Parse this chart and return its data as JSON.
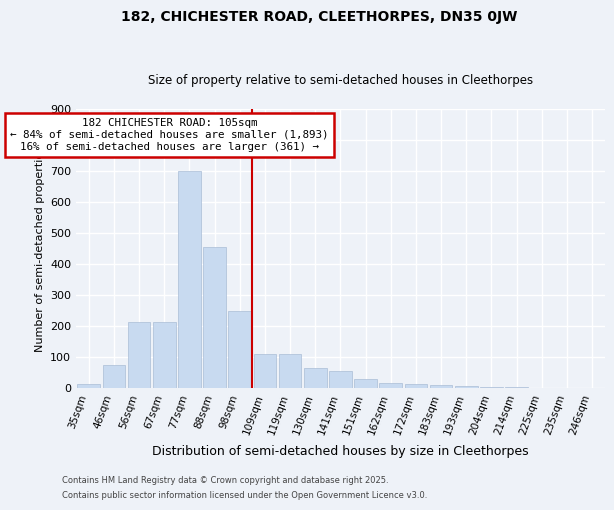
{
  "title": "182, CHICHESTER ROAD, CLEETHORPES, DN35 0JW",
  "subtitle": "Size of property relative to semi-detached houses in Cleethorpes",
  "xlabel": "Distribution of semi-detached houses by size in Cleethorpes",
  "ylabel": "Number of semi-detached properties",
  "categories": [
    "35sqm",
    "46sqm",
    "56sqm",
    "67sqm",
    "77sqm",
    "88sqm",
    "98sqm",
    "109sqm",
    "119sqm",
    "130sqm",
    "141sqm",
    "151sqm",
    "162sqm",
    "172sqm",
    "183sqm",
    "193sqm",
    "204sqm",
    "214sqm",
    "225sqm",
    "235sqm",
    "246sqm"
  ],
  "values": [
    13,
    75,
    215,
    215,
    700,
    455,
    250,
    110,
    110,
    65,
    55,
    30,
    18,
    15,
    12,
    8,
    5,
    3,
    2,
    2,
    2
  ],
  "bar_color": "#c8daf0",
  "bar_edgecolor": "#aabdd6",
  "highlight_index": 7,
  "annotation_title": "182 CHICHESTER ROAD: 105sqm",
  "annotation_line1": "← 84% of semi-detached houses are smaller (1,893)",
  "annotation_line2": "16% of semi-detached houses are larger (361) →",
  "annotation_box_color": "#ffffff",
  "annotation_box_edgecolor": "#cc0000",
  "vline_color": "#cc0000",
  "ylim": [
    0,
    900
  ],
  "yticks": [
    0,
    100,
    200,
    300,
    400,
    500,
    600,
    700,
    800,
    900
  ],
  "footer1": "Contains HM Land Registry data © Crown copyright and database right 2025.",
  "footer2": "Contains public sector information licensed under the Open Government Licence v3.0.",
  "bg_color": "#eef2f8",
  "grid_color": "#ffffff"
}
